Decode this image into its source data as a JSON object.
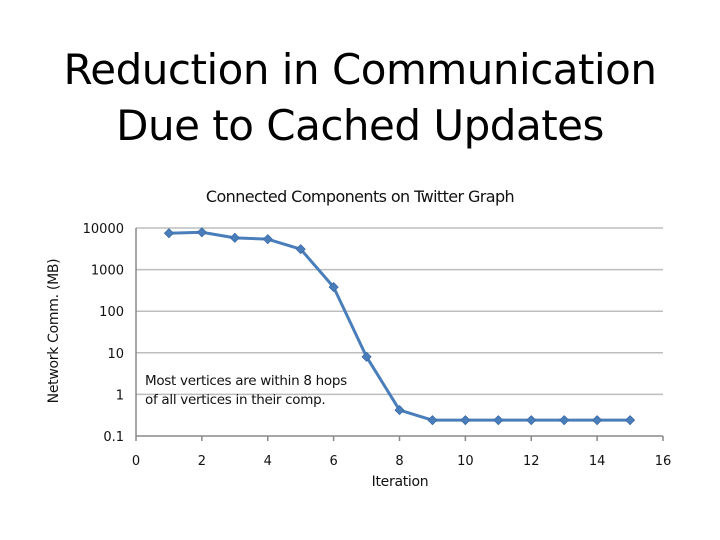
{
  "slide": {
    "title_line1": "Reduction in Communication",
    "title_line2": "Due to Cached Updates"
  },
  "chart_data": {
    "type": "line",
    "title": "Connected Components on Twitter Graph",
    "xlabel": "Iteration",
    "ylabel": "Network Comm. (MB)",
    "yscale": "log",
    "xlim": [
      0,
      16
    ],
    "ylim": [
      0.1,
      10000
    ],
    "xticks": [
      "0",
      "2",
      "4",
      "6",
      "8",
      "10",
      "12",
      "14",
      "16"
    ],
    "yticks": [
      "0.1",
      "1",
      "10",
      "100",
      "1000",
      "10000"
    ],
    "grid": "horizontal",
    "line_color": "#4A7EBB",
    "marker": "diamond",
    "annotation": {
      "line1": "Most vertices are within 8 hops",
      "line2": "of all vertices in their comp."
    },
    "series": [
      {
        "x": [
          1,
          2,
          3,
          4,
          5,
          6,
          7,
          8,
          9,
          10,
          11,
          12,
          13,
          14,
          15
        ],
        "values": [
          7500,
          7900,
          5800,
          5400,
          3100,
          380,
          8,
          0.42,
          0.24,
          0.24,
          0.24,
          0.24,
          0.24,
          0.24,
          0.24
        ]
      }
    ]
  }
}
